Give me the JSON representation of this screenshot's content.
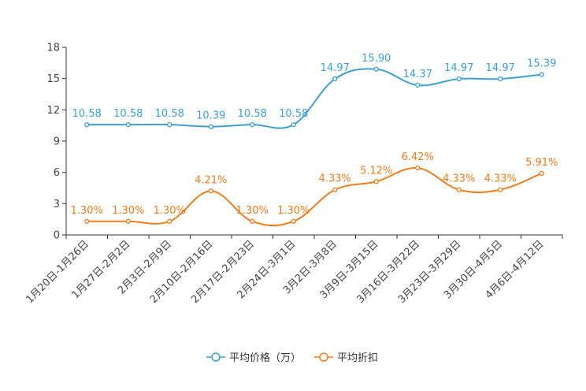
{
  "chart_data": {
    "type": "line",
    "title": "",
    "xlabel": "",
    "ylabel": "",
    "ylim": [
      0,
      18
    ],
    "yticks": [
      0,
      3,
      6,
      9,
      12,
      15,
      18
    ],
    "categories": [
      "1月20日-1月26日",
      "1月27日-2月2日",
      "2月3日-2月9日",
      "2月10日-2月16日",
      "2月17日-2月23日",
      "2月24日-3月1日",
      "3月2日-3月8日",
      "3月9日-3月15日",
      "3月16日-3月22日",
      "3月23日-3月29日",
      "3月30日-4月5日",
      "4月6日-4月12日"
    ],
    "series": [
      {
        "name": "平均价格（万）",
        "color": "#3b9fd1",
        "values": [
          10.58,
          10.58,
          10.58,
          10.39,
          10.58,
          10.58,
          14.97,
          15.9,
          14.37,
          14.97,
          14.97,
          15.39
        ],
        "labels": [
          "10.58",
          "10.58",
          "10.58",
          "10.39",
          "10.58",
          "10.58",
          "14.97",
          "15.90",
          "14.37",
          "14.97",
          "14.97",
          "15.39"
        ]
      },
      {
        "name": "平均折扣",
        "color": "#f07c1a",
        "values": [
          1.3,
          1.3,
          1.3,
          4.21,
          1.3,
          1.3,
          4.33,
          5.12,
          6.42,
          4.33,
          4.33,
          5.91
        ],
        "labels": [
          "1.30%",
          "1.30%",
          "1.30%",
          "4.21%",
          "1.30%",
          "1.30%",
          "4.33%",
          "5.12%",
          "6.42%",
          "4.33%",
          "4.33%",
          "5.91%"
        ]
      }
    ],
    "legend_position": "bottom-center",
    "grid": false
  }
}
